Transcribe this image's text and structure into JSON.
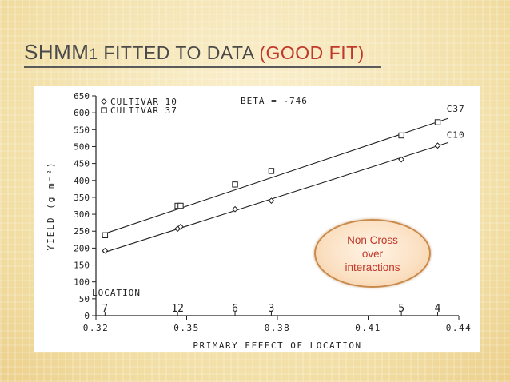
{
  "slide": {
    "title_main": "SHMM",
    "title_sub": "1",
    "title_rest": " FITTED TO DATA ",
    "title_accent": "(GOOD FIT)"
  },
  "callout": {
    "text": "Non Cross\nover\ninteractions"
  },
  "chart_data": {
    "type": "scatter",
    "title": "",
    "annotation": "BETA = -746",
    "xlabel": "PRIMARY EFFECT OF LOCATION",
    "ylabel": "YIELD (g m⁻²)",
    "xlim": [
      0.32,
      0.44
    ],
    "ylim": [
      0,
      650
    ],
    "x_ticks": [
      0.32,
      0.35,
      0.38,
      0.41,
      0.44
    ],
    "x_tick_labels": [
      "0.32",
      "0.35",
      "0.38",
      "0.41",
      "0.44"
    ],
    "y_ticks": [
      0,
      50,
      100,
      150,
      200,
      250,
      300,
      350,
      400,
      450,
      500,
      550,
      600,
      650
    ],
    "y_tick_labels": [
      "0",
      "50",
      "100",
      "150",
      "200",
      "250",
      "300",
      "350",
      "400",
      "450",
      "500",
      "550",
      "600",
      "650"
    ],
    "legend": {
      "position": "top-left",
      "entries": [
        {
          "marker": "diamond",
          "label": "CULTIVAR 10"
        },
        {
          "marker": "square",
          "label": "CULTIVAR 37"
        }
      ]
    },
    "series": [
      {
        "name": "CULTIVAR 10",
        "end_label": "C10",
        "marker": "diamond",
        "points": [
          [
            0.323,
            192
          ],
          [
            0.347,
            257
          ],
          [
            0.348,
            263
          ],
          [
            0.366,
            315
          ],
          [
            0.378,
            340
          ],
          [
            0.421,
            462
          ],
          [
            0.433,
            503
          ]
        ],
        "fit": [
          [
            0.323,
            188
          ],
          [
            0.433,
            502
          ]
        ]
      },
      {
        "name": "CULTIVAR 37",
        "end_label": "C37",
        "marker": "square",
        "points": [
          [
            0.323,
            238
          ],
          [
            0.347,
            325
          ],
          [
            0.348,
            325
          ],
          [
            0.366,
            388
          ],
          [
            0.378,
            428
          ],
          [
            0.421,
            533
          ],
          [
            0.433,
            572
          ]
        ],
        "fit": [
          [
            0.323,
            243
          ],
          [
            0.433,
            573
          ]
        ]
      }
    ],
    "locations": {
      "label": "LOCATION",
      "items": [
        {
          "label": "7",
          "x": 0.323
        },
        {
          "label": "12",
          "x": 0.347
        },
        {
          "label": "6",
          "x": 0.366
        },
        {
          "label": "3",
          "x": 0.378
        },
        {
          "label": "5",
          "x": 0.421
        },
        {
          "label": "4",
          "x": 0.433
        }
      ]
    }
  }
}
